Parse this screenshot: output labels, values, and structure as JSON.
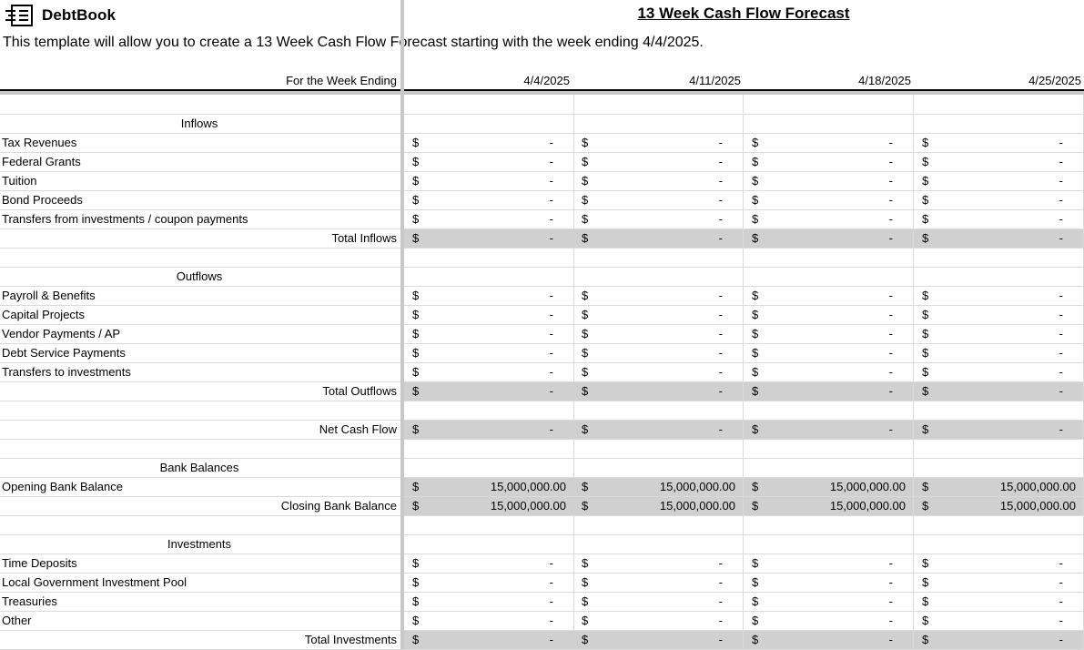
{
  "brand": {
    "name": "DebtBook",
    "icon": "debtbook-logo-icon"
  },
  "title": "13 Week Cash Flow Forecast",
  "subtitle": "This template will allow you to create a 13 Week Cash Flow Forecast starting with the week ending 4/4/2025.",
  "header": {
    "label": "For the Week Ending",
    "dates": [
      "4/4/2025",
      "4/11/2025",
      "4/18/2025",
      "4/25/2025"
    ]
  },
  "colors": {
    "total_shade": "#d0d0d0",
    "grid": "#dadada",
    "frozen_divider": "#c8c8c8"
  },
  "rows": [
    {
      "type": "blank"
    },
    {
      "type": "section",
      "label": "Inflows"
    },
    {
      "type": "item",
      "label": "Tax Revenues",
      "values": [
        "-",
        "-",
        "-",
        "-"
      ]
    },
    {
      "type": "item",
      "label": "Federal Grants",
      "values": [
        "-",
        "-",
        "-",
        "-"
      ]
    },
    {
      "type": "item",
      "label": "Tuition",
      "values": [
        "-",
        "-",
        "-",
        "-"
      ]
    },
    {
      "type": "item",
      "label": "Bond Proceeds",
      "values": [
        "-",
        "-",
        "-",
        "-"
      ]
    },
    {
      "type": "item",
      "label": "Transfers from investments / coupon payments",
      "values": [
        "-",
        "-",
        "-",
        "-"
      ]
    },
    {
      "type": "total",
      "label": "Total Inflows",
      "values": [
        "-",
        "-",
        "-",
        "-"
      ]
    },
    {
      "type": "blank"
    },
    {
      "type": "section",
      "label": "Outflows"
    },
    {
      "type": "item",
      "label": "Payroll & Benefits",
      "values": [
        "-",
        "-",
        "-",
        "-"
      ]
    },
    {
      "type": "item",
      "label": "Capital Projects",
      "values": [
        "-",
        "-",
        "-",
        "-"
      ]
    },
    {
      "type": "item",
      "label": "Vendor Payments / AP",
      "values": [
        "-",
        "-",
        "-",
        "-"
      ]
    },
    {
      "type": "item",
      "label": "Debt Service Payments",
      "values": [
        "-",
        "-",
        "-",
        "-"
      ]
    },
    {
      "type": "item",
      "label": "Transfers to investments",
      "values": [
        "-",
        "-",
        "-",
        "-"
      ]
    },
    {
      "type": "total",
      "label": "Total Outflows",
      "values": [
        "-",
        "-",
        "-",
        "-"
      ]
    },
    {
      "type": "blank"
    },
    {
      "type": "total",
      "label": "Net Cash Flow",
      "values": [
        "-",
        "-",
        "-",
        "-"
      ]
    },
    {
      "type": "blank"
    },
    {
      "type": "section",
      "label": "Bank Balances"
    },
    {
      "type": "item-shaded",
      "label": "Opening Bank Balance",
      "values": [
        "15,000,000.00",
        "15,000,000.00",
        "15,000,000.00",
        "15,000,000.00"
      ]
    },
    {
      "type": "total",
      "label": "Closing Bank Balance",
      "values": [
        "15,000,000.00",
        "15,000,000.00",
        "15,000,000.00",
        "15,000,000.00"
      ]
    },
    {
      "type": "blank"
    },
    {
      "type": "section",
      "label": "Investments"
    },
    {
      "type": "item",
      "label": "Time Deposits",
      "values": [
        "-",
        "-",
        "-",
        "-"
      ]
    },
    {
      "type": "item",
      "label": "Local Government Investment Pool",
      "values": [
        "-",
        "-",
        "-",
        "-"
      ]
    },
    {
      "type": "item",
      "label": "Treasuries",
      "values": [
        "-",
        "-",
        "-",
        "-"
      ]
    },
    {
      "type": "item",
      "label": "Other",
      "values": [
        "-",
        "-",
        "-",
        "-"
      ]
    },
    {
      "type": "total",
      "label": "Total Investments",
      "values": [
        "-",
        "-",
        "-",
        "-"
      ]
    }
  ],
  "currency_symbol": "$"
}
